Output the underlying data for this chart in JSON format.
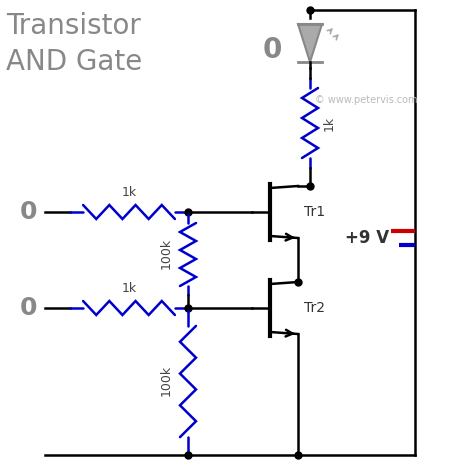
{
  "title_line1": "Transistor",
  "title_line2": "AND Gate",
  "output_label": "0",
  "input1_label": "0",
  "input2_label": "0",
  "voltage_label": "+9 V",
  "resistor_labels": {
    "r_top": "1k",
    "r_base1": "1k",
    "r_pulldown1": "100k",
    "r_base2": "1k",
    "r_pulldown2": "100k"
  },
  "transistor_labels": {
    "tr1": "Tr1",
    "tr2": "Tr2"
  },
  "title_color": "#888888",
  "wire_color_black": "#000000",
  "wire_color_blue": "#0000cc",
  "dot_color": "#000000",
  "voltage_pos_color": "#cc0000",
  "voltage_neg_color": "#0000cc",
  "background_color": "#ffffff",
  "copyright": "© www.petervis.com"
}
